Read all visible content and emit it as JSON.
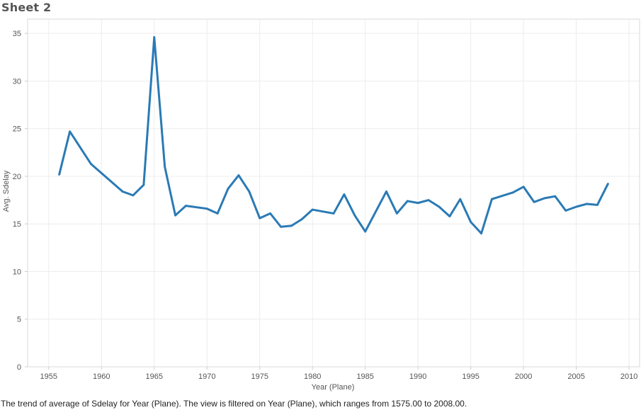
{
  "sheet": {
    "title": "Sheet 2",
    "caption": "The trend of average of Sdelay for Year (Plane). The view is filtered on Year (Plane), which ranges from 1575.00 to 2008.00."
  },
  "colors": {
    "line": "#2a7ab5",
    "grid": "#ececec",
    "axis": "#cccccc"
  },
  "chart_data": {
    "type": "line",
    "title": "",
    "xlabel": "Year (Plane)",
    "ylabel": "Avg. Sdelay",
    "xlim": [
      1953,
      2011
    ],
    "ylim": [
      0,
      36.5
    ],
    "xticks": [
      1955,
      1960,
      1965,
      1970,
      1975,
      1980,
      1985,
      1990,
      1995,
      2000,
      2005,
      2010
    ],
    "yticks": [
      0,
      5,
      10,
      15,
      20,
      25,
      30,
      35
    ],
    "grid": true,
    "legend": "none",
    "series": [
      {
        "x": [
          1956,
          1957,
          1959,
          1962,
          1963,
          1964,
          1965,
          1966,
          1967,
          1968,
          1970,
          1971,
          1972,
          1973,
          1974,
          1975,
          1976,
          1977,
          1978,
          1979,
          1980,
          1982,
          1983,
          1984,
          1985,
          1987,
          1988,
          1989,
          1990,
          1991,
          1992,
          1993,
          1994,
          1995,
          1996,
          1997,
          1999,
          2000,
          2001,
          2002,
          2003,
          2004,
          2005,
          2006,
          2007,
          2008
        ],
        "values": [
          20.2,
          24.7,
          21.3,
          18.4,
          18.0,
          19.1,
          34.6,
          21.0,
          15.9,
          16.9,
          16.6,
          16.1,
          18.7,
          20.1,
          18.4,
          15.6,
          16.1,
          14.7,
          14.8,
          15.5,
          16.5,
          16.1,
          18.1,
          15.9,
          14.2,
          18.4,
          16.1,
          17.4,
          17.2,
          17.5,
          16.8,
          15.8,
          17.6,
          15.2,
          14.0,
          17.6,
          18.3,
          18.9,
          17.3,
          17.7,
          17.9,
          16.4,
          16.8,
          17.1,
          17.0,
          19.2
        ]
      }
    ]
  }
}
